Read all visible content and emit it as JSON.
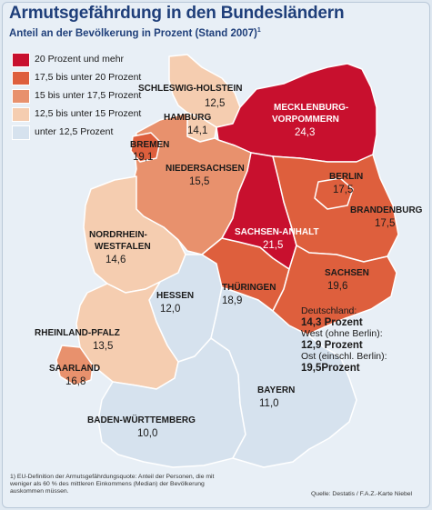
{
  "title": "Armutsgefährdung in den Bundesländern",
  "subtitle": "Anteil an der Bevölkerung in Prozent (Stand 2007)",
  "subtitle_footnote_mark": "1",
  "colors": {
    "c1": "#c8102e",
    "c2": "#de5f3d",
    "c3": "#e8916d",
    "c4": "#f5cdb0",
    "c5": "#d6e2ee",
    "border": "#ffffff",
    "background": "#e8eff6"
  },
  "legend": [
    {
      "label": "20 Prozent und mehr",
      "color": "#c8102e"
    },
    {
      "label": "17,5 bis unter 20 Prozent",
      "color": "#de5f3d"
    },
    {
      "label": "15 bis unter 17,5 Prozent",
      "color": "#e8916d"
    },
    {
      "label": "12,5 bis unter 15 Prozent",
      "color": "#f5cdb0"
    },
    {
      "label": "unter 12,5 Prozent",
      "color": "#d6e2ee"
    }
  ],
  "states": {
    "sh": {
      "name": "SCHLESWIG-HOLSTEIN",
      "value": "12,5"
    },
    "hh": {
      "name": "HAMBURG",
      "value": "14,1"
    },
    "mv": {
      "name1": "MECKLENBURG-",
      "name2": "VORPOMMERN",
      "value": "24,3"
    },
    "hb": {
      "name": "BREMEN",
      "value": "19,1"
    },
    "ni": {
      "name": "NIEDERSACHSEN",
      "value": "15,5"
    },
    "be": {
      "name": "BERLIN",
      "value": "17,5"
    },
    "bb": {
      "name": "BRANDENBURG",
      "value": "17,5"
    },
    "st": {
      "name": "SACHSEN-ANHALT",
      "value": "21,5"
    },
    "nw": {
      "name1": "NORDRHEIN-",
      "name2": "WESTFALEN",
      "value": "14,6"
    },
    "he": {
      "name": "HESSEN",
      "value": "12,0"
    },
    "th": {
      "name": "THÜRINGEN",
      "value": "18,9"
    },
    "sn": {
      "name": "SACHSEN",
      "value": "19,6"
    },
    "rp": {
      "name": "RHEINLAND-PFALZ",
      "value": "13,5"
    },
    "sl": {
      "name": "SAARLAND",
      "value": "16,8"
    },
    "by": {
      "name": "BAYERN",
      "value": "11,0"
    },
    "bw": {
      "name": "BADEN-WÜRTTEMBERG",
      "value": "10,0"
    }
  },
  "summary": {
    "de_label": "Deutschland:",
    "de_value": "14,3 Prozent",
    "west_label": "West (ohne Berlin):",
    "west_value": "12,9 Prozent",
    "ost_label": "Ost (einschl. Berlin):",
    "ost_value": "19,5Prozent"
  },
  "footnote": "1) EU-Definition der Armutsgefährdungsquote: Anteil der Personen, die mit weniger als 60 % des mittleren Einkommens (Median) der Bevölkerung auskommen müssen.",
  "source": "Quelle: Destatis / F.A.Z.-Karte Niebel"
}
